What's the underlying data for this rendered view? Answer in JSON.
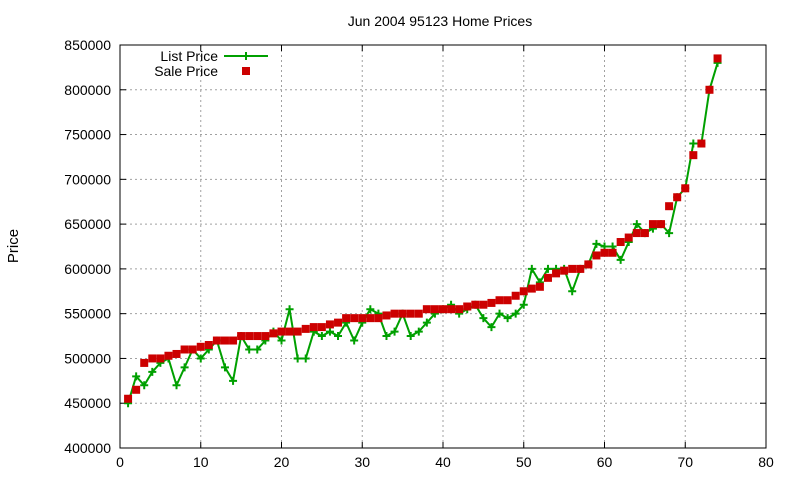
{
  "chart_data": {
    "type": "line",
    "title": "Jun 2004 95123 Home Prices",
    "xlabel": "",
    "ylabel": "Price",
    "xlim": [
      0,
      80
    ],
    "ylim": [
      400000,
      850000
    ],
    "x_ticks": [
      0,
      10,
      20,
      30,
      40,
      50,
      60,
      70,
      80
    ],
    "y_ticks": [
      400000,
      450000,
      500000,
      550000,
      600000,
      650000,
      700000,
      750000,
      800000,
      850000
    ],
    "x_tick_labels": [
      "0",
      "10",
      "20",
      "30",
      "40",
      "50",
      "60",
      "70",
      "80"
    ],
    "y_tick_labels": [
      "400000",
      "450000",
      "500000",
      "550000",
      "600000",
      "650000",
      "700000",
      "750000",
      "800000",
      "850000"
    ],
    "grid": true,
    "legend_position": "top-left",
    "x": [
      1,
      2,
      3,
      4,
      5,
      6,
      7,
      8,
      9,
      10,
      11,
      12,
      13,
      14,
      15,
      16,
      17,
      18,
      19,
      20,
      21,
      22,
      23,
      24,
      25,
      26,
      27,
      28,
      29,
      30,
      31,
      32,
      33,
      34,
      35,
      36,
      37,
      38,
      39,
      40,
      41,
      42,
      43,
      44,
      45,
      46,
      47,
      48,
      49,
      50,
      51,
      52,
      53,
      54,
      55,
      56,
      57,
      58,
      59,
      60,
      61,
      62,
      63,
      64,
      65,
      66,
      67,
      68,
      69,
      70,
      71,
      72,
      73,
      74
    ],
    "series": [
      {
        "name": "List Price",
        "style": "linespoints",
        "marker": "plus",
        "color": "#00a000",
        "values": [
          450000,
          480000,
          470000,
          485000,
          495000,
          500000,
          470000,
          490000,
          510000,
          500000,
          510000,
          520000,
          490000,
          475000,
          525000,
          510000,
          510000,
          520000,
          530000,
          520000,
          555000,
          500000,
          500000,
          530000,
          525000,
          530000,
          525000,
          540000,
          520000,
          540000,
          555000,
          550000,
          525000,
          530000,
          550000,
          525000,
          530000,
          540000,
          550000,
          555000,
          560000,
          550000,
          555000,
          560000,
          545000,
          535000,
          550000,
          545000,
          550000,
          560000,
          600000,
          585000,
          600000,
          600000,
          600000,
          575000,
          600000,
          605000,
          628000,
          625000,
          625000,
          610000,
          630000,
          650000,
          640000,
          645000,
          650000,
          640000,
          680000,
          690000,
          740000,
          740000,
          800000,
          830000
        ]
      },
      {
        "name": "Sale Price",
        "style": "points",
        "marker": "square",
        "color": "#cc0000",
        "values": [
          455000,
          465000,
          495000,
          500000,
          500000,
          503000,
          505000,
          510000,
          510000,
          513000,
          515000,
          520000,
          520000,
          520000,
          525000,
          525000,
          525000,
          525000,
          528000,
          530000,
          530000,
          530000,
          533000,
          535000,
          535000,
          538000,
          540000,
          545000,
          545000,
          545000,
          545000,
          545000,
          548000,
          550000,
          550000,
          550000,
          550000,
          555000,
          555000,
          555000,
          555000,
          555000,
          558000,
          560000,
          560000,
          562000,
          565000,
          565000,
          570000,
          575000,
          578000,
          580000,
          590000,
          595000,
          598000,
          600000,
          600000,
          605000,
          615000,
          618000,
          618000,
          630000,
          635000,
          640000,
          640000,
          650000,
          650000,
          670000,
          680000,
          690000,
          727000,
          740000,
          800000,
          835000
        ]
      }
    ]
  }
}
